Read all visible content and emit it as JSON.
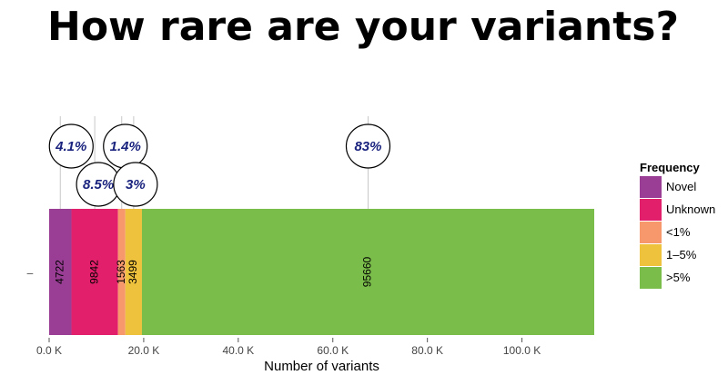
{
  "title": "How rare are your variants?",
  "chart_data": {
    "type": "bar",
    "orientation": "horizontal",
    "stacked": true,
    "categories": [
      "–"
    ],
    "series": [
      {
        "name": "Novel",
        "values": [
          4722
        ],
        "color": "#993d95",
        "percent": "4.1%"
      },
      {
        "name": "Unknown",
        "values": [
          9842
        ],
        "color": "#e11f6a",
        "percent": "8.5%"
      },
      {
        "name": "<1%",
        "values": [
          1563
        ],
        "color": "#f6986b",
        "percent": "1.4%"
      },
      {
        "name": "1–5%",
        "values": [
          3499
        ],
        "color": "#eec23c",
        "percent": "3%"
      },
      {
        "name": ">5%",
        "values": [
          95660
        ],
        "color": "#7bbd4a",
        "percent": "83%"
      }
    ],
    "xlabel": "Number of variants",
    "ylabel": "",
    "xlim": [
      0,
      115286
    ],
    "xticks": [
      {
        "value": 0,
        "label": "0.0 K"
      },
      {
        "value": 20000,
        "label": "20.0 K"
      },
      {
        "value": 40000,
        "label": "40.0 K"
      },
      {
        "value": 60000,
        "label": "60.0 K"
      },
      {
        "value": 80000,
        "label": "80.0 K"
      },
      {
        "value": 100000,
        "label": "100.0 K"
      }
    ],
    "legend": {
      "title": "Frequency",
      "position": "right"
    },
    "grid": false
  }
}
